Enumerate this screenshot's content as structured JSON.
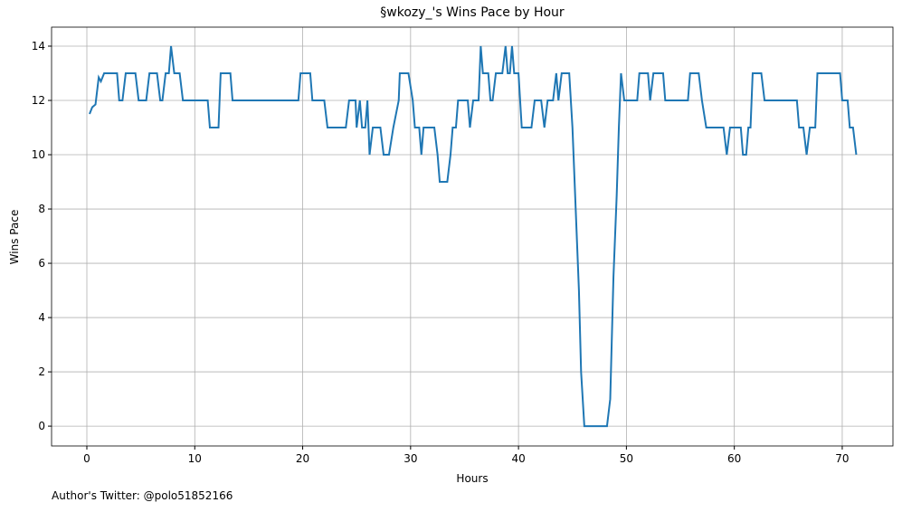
{
  "chart_data": {
    "type": "line",
    "title": "§wkozy_'s Wins Pace by Hour",
    "xlabel": "Hours",
    "ylabel": "Wins Pace",
    "footer": "Author's Twitter: @polo51852166",
    "color": "#1f77b4",
    "grid": true,
    "xlim": [
      -3.27,
      74.7
    ],
    "ylim": [
      -0.73,
      14.7
    ],
    "xticks": [
      0,
      10,
      20,
      30,
      40,
      50,
      60,
      70
    ],
    "yticks": [
      0,
      2,
      4,
      6,
      8,
      10,
      12,
      14
    ],
    "x": [
      0.25,
      0.5,
      0.8,
      1.1,
      1.3,
      1.6,
      2.0,
      2.8,
      3.0,
      3.3,
      3.6,
      4.5,
      4.8,
      5.5,
      5.8,
      6.5,
      6.8,
      7.0,
      7.3,
      7.6,
      7.8,
      8.1,
      8.6,
      8.9,
      11.2,
      11.4,
      12.2,
      12.4,
      13.3,
      13.5,
      19.6,
      19.8,
      20.7,
      20.9,
      22.0,
      22.3,
      24.0,
      24.3,
      24.9,
      25.0,
      25.3,
      25.5,
      25.8,
      26.0,
      26.2,
      26.5,
      27.2,
      27.5,
      28.0,
      28.4,
      28.9,
      29.0,
      29.8,
      30.2,
      30.4,
      30.8,
      31.0,
      31.2,
      32.2,
      32.5,
      32.7,
      33.4,
      33.7,
      33.9,
      34.2,
      34.4,
      35.3,
      35.5,
      35.8,
      36.3,
      36.5,
      36.7,
      37.2,
      37.4,
      37.6,
      37.9,
      38.5,
      38.8,
      39.0,
      39.2,
      39.4,
      39.6,
      40.0,
      40.3,
      41.2,
      41.5,
      42.1,
      42.4,
      42.7,
      43.2,
      43.5,
      43.7,
      44.0,
      44.7,
      45.0,
      45.3,
      45.6,
      45.8,
      46.1,
      48.2,
      48.5,
      48.8,
      49.1,
      49.3,
      49.5,
      49.8,
      51.0,
      51.2,
      52.0,
      52.2,
      52.5,
      53.4,
      53.6,
      55.7,
      55.9,
      56.7,
      57.0,
      57.4,
      59.0,
      59.3,
      59.6,
      60.6,
      60.8,
      61.1,
      61.3,
      61.5,
      61.7,
      62.5,
      62.8,
      65.8,
      66.0,
      66.4,
      66.7,
      67.0,
      67.5,
      67.7,
      69.8,
      70.0,
      70.5,
      70.7,
      71.0,
      71.3
    ],
    "values": [
      11.5,
      11.75,
      11.85,
      12.85,
      12.7,
      13,
      13,
      13,
      12,
      12,
      13,
      13,
      12,
      12,
      13,
      13,
      12,
      12,
      13,
      13,
      14,
      13,
      13,
      12,
      12,
      11,
      11,
      13,
      13,
      12,
      12,
      13,
      13,
      12,
      12,
      11,
      11,
      12,
      12,
      11,
      12,
      11,
      11,
      12,
      10,
      11,
      11,
      10,
      10,
      11,
      12,
      13,
      13,
      12,
      11,
      11,
      10,
      11,
      11,
      10,
      9,
      9,
      10,
      11,
      11,
      12,
      12,
      11,
      12,
      12,
      14,
      13,
      13,
      12,
      12,
      13,
      13,
      14,
      13,
      13,
      14,
      13,
      13,
      11,
      11,
      12,
      12,
      11,
      12,
      12,
      13,
      12,
      13,
      13,
      11,
      8,
      5,
      2,
      0,
      0,
      1,
      5.5,
      8.5,
      11,
      13,
      12,
      12,
      13,
      13,
      12,
      13,
      13,
      12,
      12,
      13,
      13,
      12,
      11,
      11,
      10,
      11,
      11,
      10,
      10,
      11,
      11,
      13,
      13,
      12,
      12,
      11,
      11,
      10,
      11,
      11,
      13,
      13,
      12,
      12,
      11,
      11,
      10
    ]
  }
}
